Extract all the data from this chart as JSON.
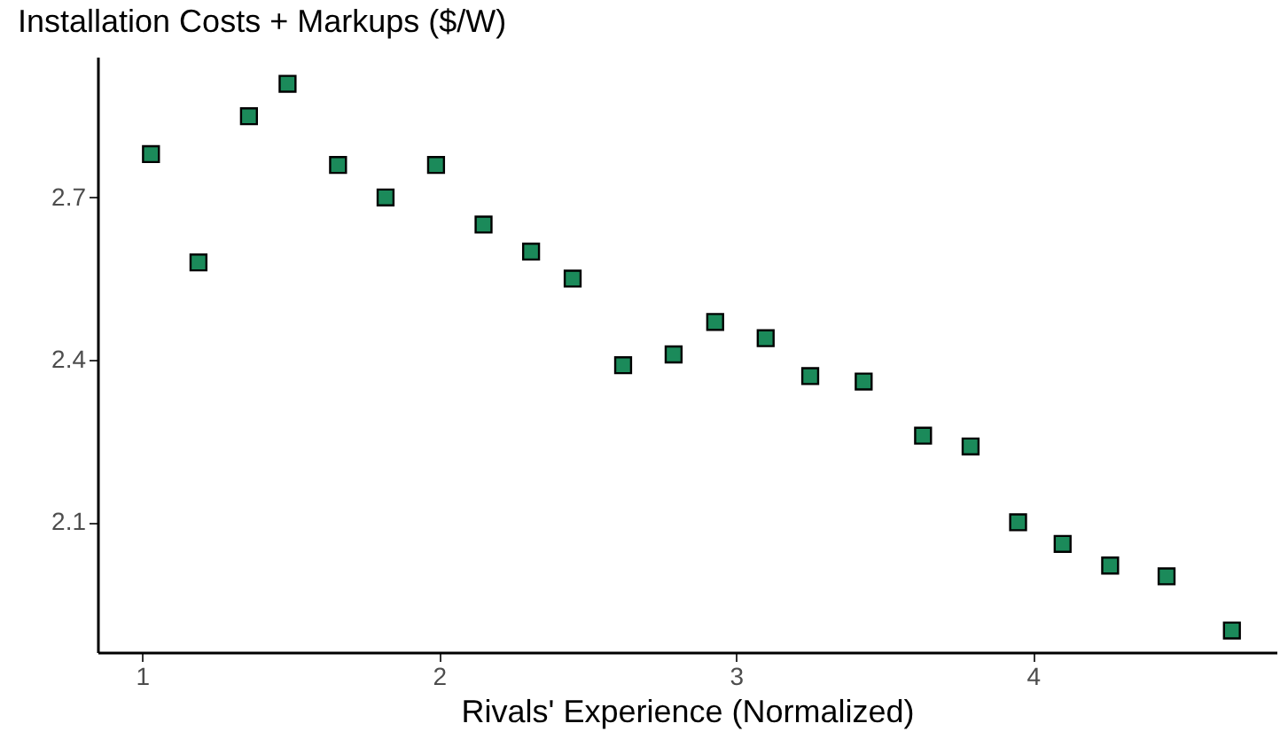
{
  "chart_data": {
    "type": "scatter",
    "title": "Installation Costs + Markups ($/W)",
    "xlabel": "Rivals' Experience (Normalized)",
    "x": [
      1.03,
      1.19,
      1.36,
      1.49,
      1.66,
      1.82,
      1.99,
      2.15,
      2.31,
      2.45,
      2.62,
      2.79,
      2.93,
      3.1,
      3.25,
      3.43,
      3.63,
      3.79,
      3.95,
      4.1,
      4.26,
      4.45,
      4.67
    ],
    "series": [
      {
        "color": "#1b8a5a",
        "values": [
          2.78,
          2.58,
          2.85,
          2.91,
          2.76,
          2.7,
          2.76,
          2.65,
          2.6,
          2.55,
          2.39,
          2.41,
          2.47,
          2.44,
          2.37,
          2.36,
          2.26,
          2.24,
          2.1,
          2.06,
          2.02,
          2.0,
          1.9
        ]
      }
    ],
    "xlim": [
      0.85,
      4.82
    ],
    "ylim": [
      1.86,
      2.96
    ],
    "xticks": [
      1,
      2,
      3,
      4
    ],
    "yticks": [
      2.1,
      2.4,
      2.7
    ],
    "marker": "square",
    "grid": false
  }
}
